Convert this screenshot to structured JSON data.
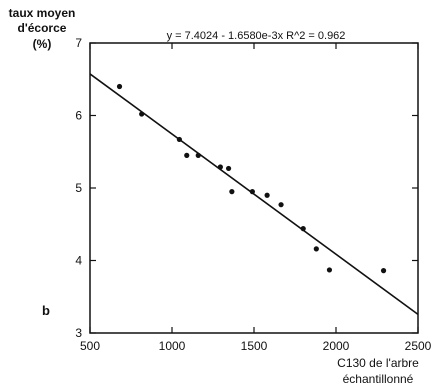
{
  "chart_data": {
    "type": "scatter",
    "panel_label": "b",
    "ylabel": [
      "taux moyen",
      "d'écorce",
      "(%)"
    ],
    "xlabel": [
      "C130 de l'arbre",
      "échantillonné"
    ],
    "equation": "y = 7.4024 - 1.6580e-3x   R^2 = 0.962",
    "xlim": [
      500,
      2500
    ],
    "ylim": [
      3,
      7
    ],
    "xticks": [
      500,
      1000,
      1500,
      2000,
      2500
    ],
    "yticks": [
      3,
      4,
      5,
      6,
      7
    ],
    "grid": false,
    "regression": {
      "intercept": 7.4024,
      "slope": -0.001658
    },
    "points": [
      {
        "x": 680,
        "y": 6.4
      },
      {
        "x": 815,
        "y": 6.02
      },
      {
        "x": 1045,
        "y": 5.67
      },
      {
        "x": 1090,
        "y": 5.45
      },
      {
        "x": 1160,
        "y": 5.45
      },
      {
        "x": 1295,
        "y": 5.29
      },
      {
        "x": 1345,
        "y": 5.27
      },
      {
        "x": 1365,
        "y": 4.95
      },
      {
        "x": 1490,
        "y": 4.95
      },
      {
        "x": 1580,
        "y": 4.9
      },
      {
        "x": 1665,
        "y": 4.77
      },
      {
        "x": 1800,
        "y": 4.44
      },
      {
        "x": 1880,
        "y": 4.16
      },
      {
        "x": 1960,
        "y": 3.87
      },
      {
        "x": 2290,
        "y": 3.86
      }
    ]
  }
}
